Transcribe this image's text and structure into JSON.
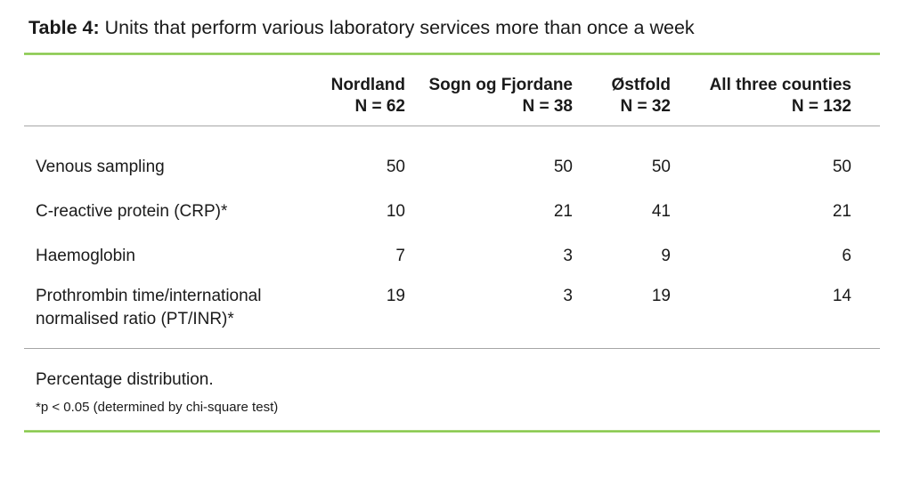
{
  "title": {
    "label": "Table 4:",
    "text": " Units that perform various laboratory services more than once a week"
  },
  "colors": {
    "accent_green_rule": "#7ec141",
    "gray_rule": "#a6a6a6",
    "text": "#1a1a1a"
  },
  "table": {
    "columns": [
      {
        "name": "Nordland",
        "n": "N = 62"
      },
      {
        "name": "Sogn og Fjordane",
        "n": "N = 38"
      },
      {
        "name": "Østfold",
        "n": "N = 32"
      },
      {
        "name": "All three counties",
        "n": "N = 132"
      }
    ],
    "rows": [
      {
        "label": "Venous sampling",
        "values": [
          "50",
          "50",
          "50",
          "50"
        ]
      },
      {
        "label": "C-reactive protein (CRP)*",
        "values": [
          "10",
          "21",
          "41",
          "21"
        ]
      },
      {
        "label": "Haemoglobin",
        "values": [
          "7",
          "3",
          "9",
          "6"
        ]
      },
      {
        "label": "Prothrombin time/international normalised ratio (PT/INR)*",
        "values": [
          "19",
          "3",
          "19",
          "14"
        ]
      }
    ]
  },
  "footnotes": {
    "primary": "Percentage distribution.",
    "secondary": "*p < 0.05 (determined by chi-square test)"
  },
  "chart_data": {
    "type": "table",
    "title": "Table 4: Units that perform various laboratory services more than once a week",
    "columns": [
      "Nordland N = 62",
      "Sogn og Fjordane N = 38",
      "Østfold N = 32",
      "All three counties N = 132"
    ],
    "row_labels": [
      "Venous sampling",
      "C-reactive protein (CRP)*",
      "Haemoglobin",
      "Prothrombin time/international normalised ratio (PT/INR)*"
    ],
    "values": [
      [
        50,
        50,
        50,
        50
      ],
      [
        10,
        21,
        41,
        21
      ],
      [
        7,
        3,
        9,
        6
      ],
      [
        19,
        3,
        19,
        14
      ]
    ],
    "notes": [
      "Percentage distribution.",
      "*p < 0.05 (determined by chi-square test)"
    ]
  }
}
